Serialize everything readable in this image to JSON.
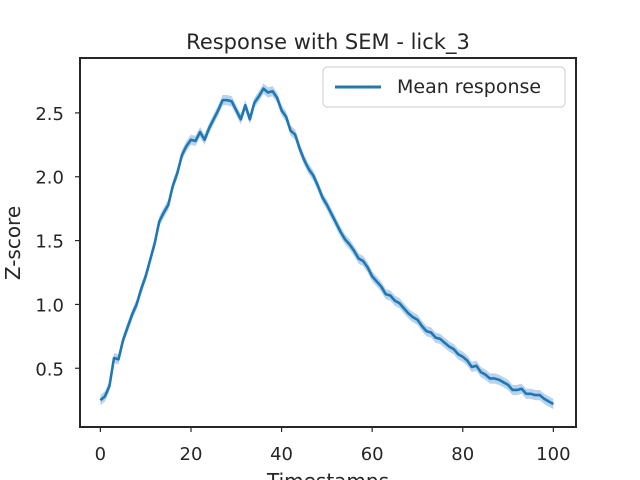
{
  "chart_data": {
    "type": "line",
    "title": "Response with SEM - lick_3",
    "xlabel": "Timestamps",
    "ylabel": "Z-score",
    "xlim": [
      -4.5,
      105
    ],
    "ylim": [
      0.04,
      2.93
    ],
    "xticks": [
      0,
      20,
      40,
      60,
      80,
      100
    ],
    "yticks": [
      0.5,
      1.0,
      1.5,
      2.0,
      2.5
    ],
    "xtick_labels": [
      "0",
      "20",
      "40",
      "60",
      "80",
      "100"
    ],
    "ytick_labels": [
      "0.5",
      "1.0",
      "1.5",
      "2.0",
      "2.5"
    ],
    "grid": false,
    "legend_position": "top-right",
    "colors": {
      "line": "#1f77b4",
      "band": "#a6c8e6",
      "axes": "#262626"
    },
    "series": [
      {
        "name": "Mean response",
        "sem": 0.04,
        "points": [
          [
            0,
            0.25
          ],
          [
            1,
            0.28
          ],
          [
            2,
            0.36
          ],
          [
            3,
            0.58
          ],
          [
            4,
            0.57
          ],
          [
            5,
            0.72
          ],
          [
            6,
            0.82
          ],
          [
            7,
            0.92
          ],
          [
            8,
            1.0
          ],
          [
            9,
            1.12
          ],
          [
            10,
            1.22
          ],
          [
            11,
            1.35
          ],
          [
            12,
            1.48
          ],
          [
            13,
            1.65
          ],
          [
            14,
            1.72
          ],
          [
            15,
            1.78
          ],
          [
            16,
            1.93
          ],
          [
            17,
            2.03
          ],
          [
            18,
            2.17
          ],
          [
            19,
            2.24
          ],
          [
            20,
            2.29
          ],
          [
            21,
            2.28
          ],
          [
            22,
            2.35
          ],
          [
            23,
            2.29
          ],
          [
            24,
            2.38
          ],
          [
            25,
            2.45
          ],
          [
            26,
            2.52
          ],
          [
            27,
            2.6
          ],
          [
            28,
            2.6
          ],
          [
            29,
            2.59
          ],
          [
            30,
            2.52
          ],
          [
            31,
            2.45
          ],
          [
            32,
            2.56
          ],
          [
            33,
            2.45
          ],
          [
            34,
            2.58
          ],
          [
            35,
            2.63
          ],
          [
            36,
            2.69
          ],
          [
            37,
            2.66
          ],
          [
            38,
            2.67
          ],
          [
            39,
            2.62
          ],
          [
            40,
            2.52
          ],
          [
            41,
            2.47
          ],
          [
            42,
            2.36
          ],
          [
            43,
            2.33
          ],
          [
            44,
            2.22
          ],
          [
            45,
            2.13
          ],
          [
            46,
            2.06
          ],
          [
            47,
            2.01
          ],
          [
            48,
            1.93
          ],
          [
            49,
            1.84
          ],
          [
            50,
            1.78
          ],
          [
            51,
            1.71
          ],
          [
            52,
            1.64
          ],
          [
            53,
            1.57
          ],
          [
            54,
            1.51
          ],
          [
            55,
            1.47
          ],
          [
            56,
            1.42
          ],
          [
            57,
            1.36
          ],
          [
            58,
            1.34
          ],
          [
            59,
            1.29
          ],
          [
            60,
            1.22
          ],
          [
            61,
            1.18
          ],
          [
            62,
            1.14
          ],
          [
            63,
            1.08
          ],
          [
            64,
            1.07
          ],
          [
            65,
            1.03
          ],
          [
            66,
            1.01
          ],
          [
            67,
            0.97
          ],
          [
            68,
            0.93
          ],
          [
            69,
            0.9
          ],
          [
            70,
            0.88
          ],
          [
            71,
            0.83
          ],
          [
            72,
            0.79
          ],
          [
            73,
            0.78
          ],
          [
            74,
            0.74
          ],
          [
            75,
            0.73
          ],
          [
            76,
            0.7
          ],
          [
            77,
            0.67
          ],
          [
            78,
            0.65
          ],
          [
            79,
            0.61
          ],
          [
            80,
            0.59
          ],
          [
            81,
            0.56
          ],
          [
            82,
            0.51
          ],
          [
            83,
            0.52
          ],
          [
            84,
            0.47
          ],
          [
            85,
            0.45
          ],
          [
            86,
            0.42
          ],
          [
            87,
            0.42
          ],
          [
            88,
            0.41
          ],
          [
            89,
            0.39
          ],
          [
            90,
            0.37
          ],
          [
            91,
            0.33
          ],
          [
            92,
            0.33
          ],
          [
            93,
            0.34
          ],
          [
            94,
            0.3
          ],
          [
            95,
            0.3
          ],
          [
            96,
            0.29
          ],
          [
            97,
            0.29
          ],
          [
            98,
            0.26
          ],
          [
            99,
            0.24
          ],
          [
            100,
            0.22
          ]
        ]
      }
    ]
  }
}
